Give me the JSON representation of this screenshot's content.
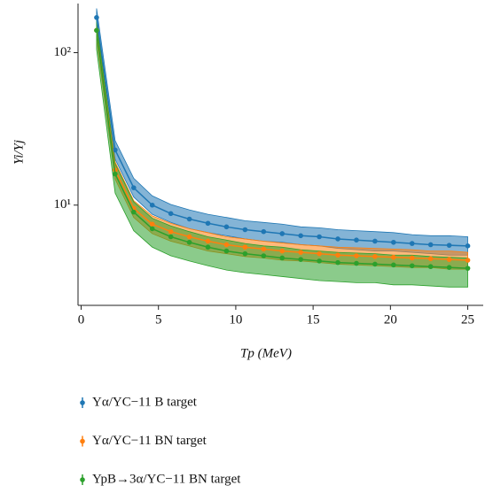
{
  "chart_data": {
    "type": "line",
    "xlabel": "Tp (MeV)",
    "ylabel": "Yi/Yj",
    "x": [
      1,
      2.2,
      3.4,
      4.6,
      5.8,
      7,
      8.2,
      9.4,
      10.6,
      11.8,
      13,
      14.2,
      15.4,
      16.6,
      17.8,
      19,
      20.2,
      21.4,
      22.6,
      23.8,
      25
    ],
    "xlim": [
      -0.2,
      26
    ],
    "xticks": [
      0,
      5,
      10,
      15,
      20,
      25
    ],
    "ylim": [
      2.2,
      210
    ],
    "ylog": true,
    "yticks": [
      {
        "value": 10,
        "label": "10¹"
      },
      {
        "value": 100,
        "label": "10²"
      }
    ],
    "legend": "bottom",
    "series": [
      {
        "name": "Yα/YC−11 B target",
        "color": "#1f77b4",
        "values": [
          170,
          23,
          13,
          10,
          8.8,
          8.1,
          7.6,
          7.2,
          6.9,
          6.7,
          6.5,
          6.3,
          6.2,
          6.0,
          5.9,
          5.8,
          5.7,
          5.6,
          5.5,
          5.45,
          5.4
        ],
        "upper": [
          195,
          26.5,
          15,
          11.5,
          10.1,
          9.3,
          8.7,
          8.3,
          7.9,
          7.7,
          7.5,
          7.2,
          7.1,
          6.9,
          6.8,
          6.7,
          6.6,
          6.4,
          6.3,
          6.3,
          6.2
        ],
        "lower": [
          148,
          20,
          11.3,
          8.7,
          7.7,
          7.0,
          6.6,
          6.3,
          6.0,
          5.8,
          5.7,
          5.5,
          5.4,
          5.2,
          5.1,
          5.0,
          5.0,
          4.9,
          4.8,
          4.7,
          4.7
        ]
      },
      {
        "name": "Yα/YC−11 BN target",
        "color": "#ff7f0e",
        "values": [
          140,
          17,
          9.5,
          7.5,
          6.7,
          6.2,
          5.8,
          5.5,
          5.3,
          5.15,
          5.0,
          4.9,
          4.8,
          4.7,
          4.65,
          4.6,
          4.55,
          4.5,
          4.45,
          4.4,
          4.35
        ],
        "upper": [
          158,
          19.2,
          10.7,
          8.5,
          7.6,
          7.0,
          6.6,
          6.2,
          6.0,
          5.8,
          5.65,
          5.5,
          5.4,
          5.3,
          5.25,
          5.2,
          5.15,
          5.1,
          5.0,
          5.0,
          4.9
        ],
        "lower": [
          122,
          14.8,
          8.3,
          6.5,
          5.8,
          5.4,
          5.0,
          4.8,
          4.6,
          4.5,
          4.35,
          4.3,
          4.2,
          4.1,
          4.05,
          4.0,
          3.95,
          3.9,
          3.9,
          3.8,
          3.8
        ]
      },
      {
        "name": "YpB→3α/YC−11 BN target",
        "color": "#2ca02c",
        "values": [
          140,
          16,
          9,
          7,
          6.2,
          5.7,
          5.3,
          5.0,
          4.8,
          4.65,
          4.5,
          4.4,
          4.3,
          4.2,
          4.15,
          4.1,
          4.05,
          4.0,
          3.95,
          3.9,
          3.85
        ],
        "upper": [
          164,
          18.7,
          10.5,
          8.2,
          7.3,
          6.7,
          6.2,
          5.9,
          5.6,
          5.4,
          5.3,
          5.1,
          5.0,
          4.9,
          4.85,
          4.8,
          4.7,
          4.7,
          4.6,
          4.55,
          4.5
        ],
        "lower": [
          105,
          12,
          6.8,
          5.3,
          4.65,
          4.3,
          4.0,
          3.75,
          3.6,
          3.5,
          3.4,
          3.3,
          3.2,
          3.15,
          3.1,
          3.1,
          3.0,
          3.0,
          2.95,
          2.9,
          2.9
        ]
      }
    ]
  }
}
